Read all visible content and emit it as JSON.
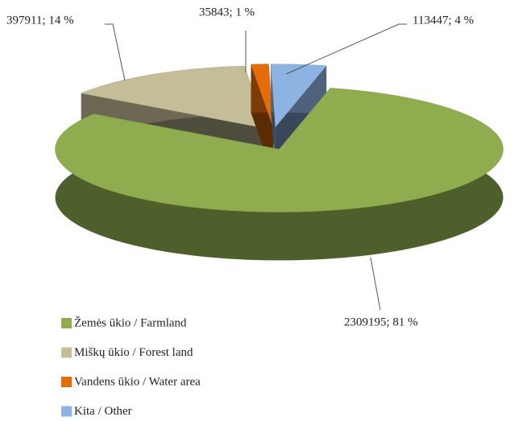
{
  "chart_data": {
    "type": "pie",
    "categories": [
      "Žemės ūkio / Farmland",
      "Miškų ūkio / Forest land",
      "Vandens ūkio / Water area",
      "Kita / Other"
    ],
    "values": [
      2309195,
      397911,
      35843,
      113447
    ],
    "value_labels": [
      "2309195; 81 %",
      "397911; 14 %",
      "35843; 1 %",
      "113447; 4 %"
    ],
    "colors": [
      "#8fad4f",
      "#c4bd97",
      "#e46c0a",
      "#8db3e2"
    ],
    "legend": "bottom-left"
  }
}
